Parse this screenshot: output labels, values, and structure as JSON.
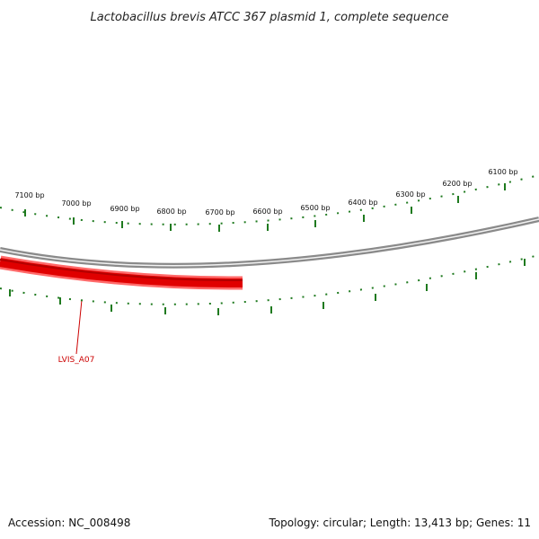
{
  "title": "Lactobacillus brevis ATCC 367 plasmid 1, complete sequence",
  "footer": {
    "accession": "Accession: NC_008498",
    "summary": "Topology: circular; Length: 13,413 bp; Genes: 11"
  },
  "plasmid": {
    "length_bp": 13413,
    "topology": "circular",
    "gene_count": 11
  },
  "scale": {
    "tick_labels": [
      "7100 bp",
      "7000 bp",
      "6900 bp",
      "6800 bp",
      "6700 bp",
      "6600 bp",
      "6500 bp",
      "6400 bp",
      "6300 bp",
      "6200 bp",
      "6100 bp"
    ]
  },
  "genes": [
    {
      "label": "LVIS_A07",
      "strand": "reverse"
    }
  ],
  "colors": {
    "backbone": "#8a8a8a",
    "ticks": "#1f7a1f",
    "gene_fill": "#e00000",
    "gene_edge": "#ff6a6a",
    "gene_label": "#cc0000"
  }
}
